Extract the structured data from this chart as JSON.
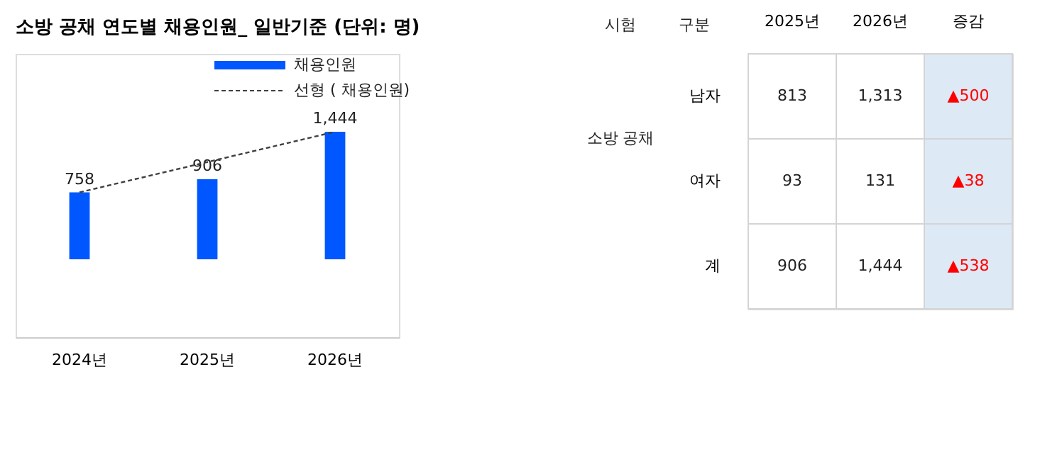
{
  "chart_data": [
    {
      "type": "bar",
      "title": "소방 공채 연도별 채용인원_ 일반기준 (단위: 명)",
      "categories": [
        "2024년",
        "2025년",
        "2026년"
      ],
      "legend": "top right",
      "grid": false,
      "series": [
        {
          "name": "채용인원",
          "type": "bar",
          "color": "#0057ff",
          "values": [
            758,
            906,
            1444
          ],
          "value_labels": [
            "758",
            "906",
            "1,444"
          ]
        },
        {
          "name": "선형 ( 채용인원)",
          "type": "line",
          "line_style": "dashed",
          "color": "#404040",
          "values": [
            758,
            null,
            1444
          ]
        }
      ]
    },
    {
      "type": "other",
      "categories": [
        "2025년",
        "2026년",
        "증감"
      ],
      "y_categories": [
        "남자",
        "여자",
        "계"
      ],
      "cell_labels": [
        [
          "813",
          "1,313",
          "▲500"
        ],
        [
          "93",
          "131",
          "▲38"
        ],
        [
          "906",
          "1,444",
          "▲538"
        ]
      ],
      "colors": [
        "#ffffff",
        "#ffffff",
        "#dde9f5"
      ],
      "annotations": [
        "시험",
        "구분",
        "소방 공채"
      ]
    }
  ]
}
